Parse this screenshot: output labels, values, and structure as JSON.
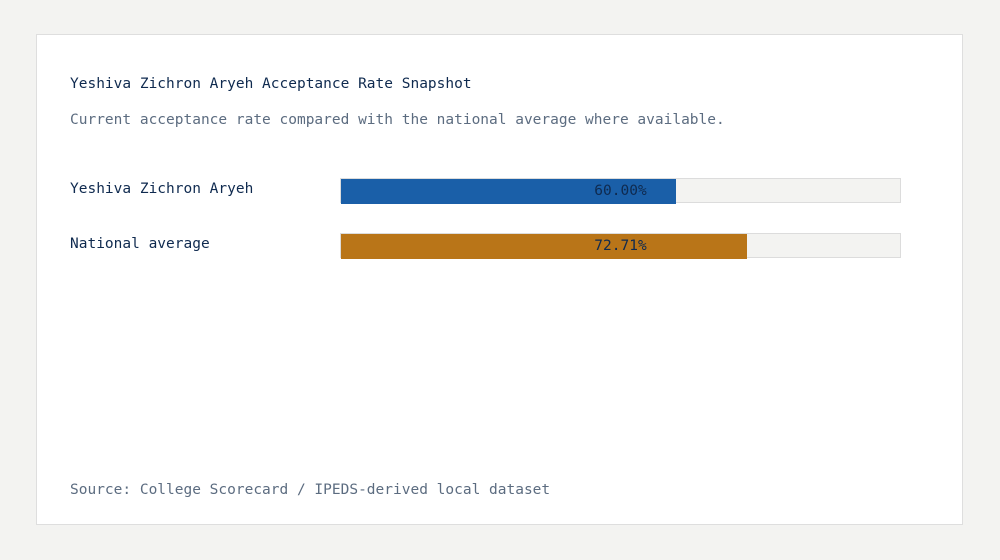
{
  "chart_data": {
    "type": "bar",
    "orientation": "horizontal",
    "title": "Yeshiva Zichron Aryeh Acceptance Rate Snapshot",
    "subtitle": "Current acceptance rate compared with the national average where available.",
    "source": "Source: College Scorecard / IPEDS-derived local dataset",
    "xlim": [
      0,
      100
    ],
    "unit": "%",
    "categories": [
      "Yeshiva Zichron Aryeh",
      "National average"
    ],
    "values": [
      60.0,
      72.71
    ],
    "value_labels": [
      "60.00%",
      "72.71%"
    ],
    "colors": [
      "#1a5fa8",
      "#b97518"
    ],
    "track_color": "#f3f3f1"
  }
}
